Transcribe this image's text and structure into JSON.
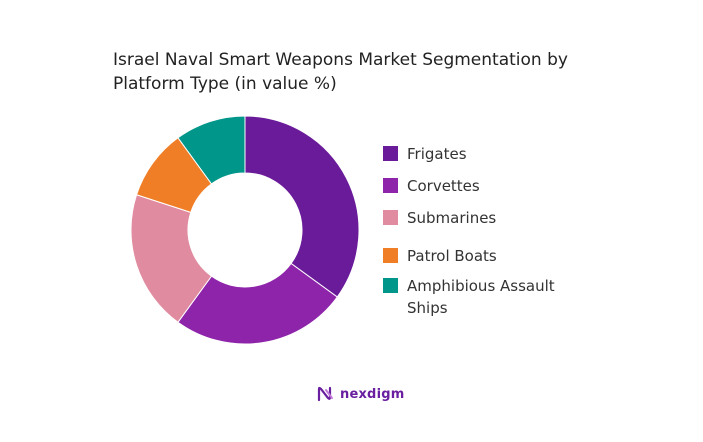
{
  "title_lines": [
    "Israel Naval Smart Weapons Market Segmentation by",
    "Platform Type (in value %)"
  ],
  "brand": {
    "name": "nexdigm",
    "logo_icon": "nexdigm-logo-icon",
    "color": "#6a1fa0"
  },
  "chart_data": {
    "type": "pie",
    "donut": true,
    "title": "Israel Naval Smart Weapons Market Segmentation by Platform Type (in value %)",
    "legend_position": "right",
    "start_angle_deg": 0,
    "direction": "clockwise",
    "series": [
      {
        "name": "Frigates",
        "value": 35,
        "color": "#6a1b9a"
      },
      {
        "name": "Corvettes",
        "value": 25,
        "color": "#8e24aa"
      },
      {
        "name": "Submarines",
        "value": 20,
        "color": "#e08b9f"
      },
      {
        "name": "Patrol Boats",
        "value": 10,
        "color": "#f07e26"
      },
      {
        "name": "Amphibious Assault Ships",
        "value": 10,
        "color": "#00968a"
      }
    ]
  }
}
